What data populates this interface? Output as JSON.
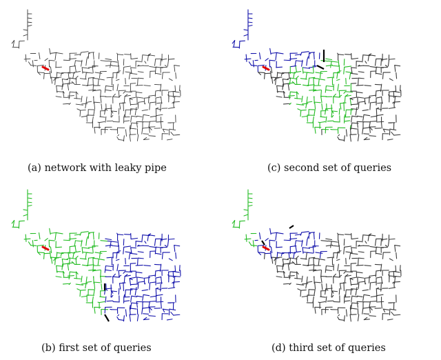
{
  "panels": [
    {
      "id": "a",
      "caption": "(a) network with leaky pipe",
      "mode": "plain"
    },
    {
      "id": "c",
      "caption": "(c) second set of queries",
      "mode": "second"
    },
    {
      "id": "b",
      "caption": "(b) first set of queries",
      "mode": "first"
    },
    {
      "id": "d",
      "caption": "(d) third set of queries",
      "mode": "third"
    }
  ],
  "colors": {
    "pipe": "#3a3a3a",
    "leak": "#e00000",
    "queried_green": "#22bb22",
    "queried_blue": "#1010aa",
    "boundary": "#000000"
  }
}
